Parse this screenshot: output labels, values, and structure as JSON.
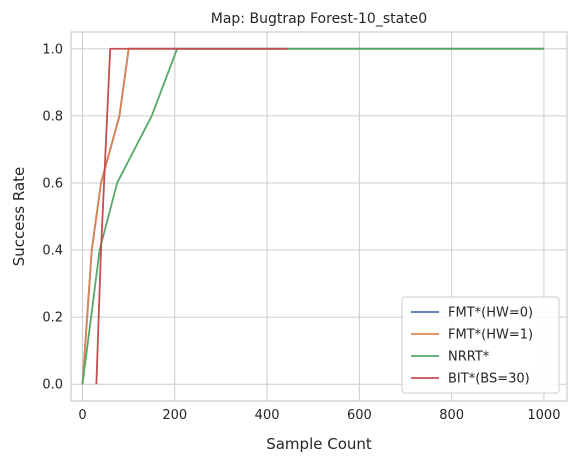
{
  "chart_data": {
    "type": "line",
    "title": "Map: Bugtrap Forest-10_state0",
    "xlabel": "Sample Count",
    "ylabel": "Success Rate",
    "xlim": [
      -25,
      1050
    ],
    "ylim": [
      -0.05,
      1.05
    ],
    "xticks": [
      0,
      200,
      400,
      600,
      800,
      1000
    ],
    "yticks": [
      0.0,
      0.2,
      0.4,
      0.6,
      0.8,
      1.0
    ],
    "xtick_labels": [
      "0",
      "200",
      "400",
      "600",
      "800",
      "1000"
    ],
    "ytick_labels": [
      "0.0",
      "0.2",
      "0.4",
      "0.6",
      "0.8",
      "1.0"
    ],
    "grid": true,
    "legend_position": "lower-right",
    "series": [
      {
        "name": "FMT*(HW=0)",
        "color": "#4c72b0",
        "x": [
          0,
          20,
          40,
          80,
          100,
          1000
        ],
        "y": [
          0.0,
          0.4,
          0.6,
          0.8,
          1.0,
          1.0
        ]
      },
      {
        "name": "FMT*(HW=1)",
        "color": "#dd8452",
        "x": [
          0,
          20,
          40,
          80,
          100,
          1000
        ],
        "y": [
          0.0,
          0.4,
          0.6,
          0.8,
          1.0,
          1.0
        ]
      },
      {
        "name": "NRRT*",
        "color": "#55a868",
        "x": [
          0,
          37,
          75,
          150,
          205,
          1000
        ],
        "y": [
          0.0,
          0.4,
          0.6,
          0.8,
          1.0,
          1.0
        ]
      },
      {
        "name": "BIT*(BS=30)",
        "color": "#c44e52",
        "x": [
          30,
          40,
          60,
          445
        ],
        "y": [
          0.0,
          0.4,
          1.0,
          1.0
        ]
      }
    ]
  }
}
